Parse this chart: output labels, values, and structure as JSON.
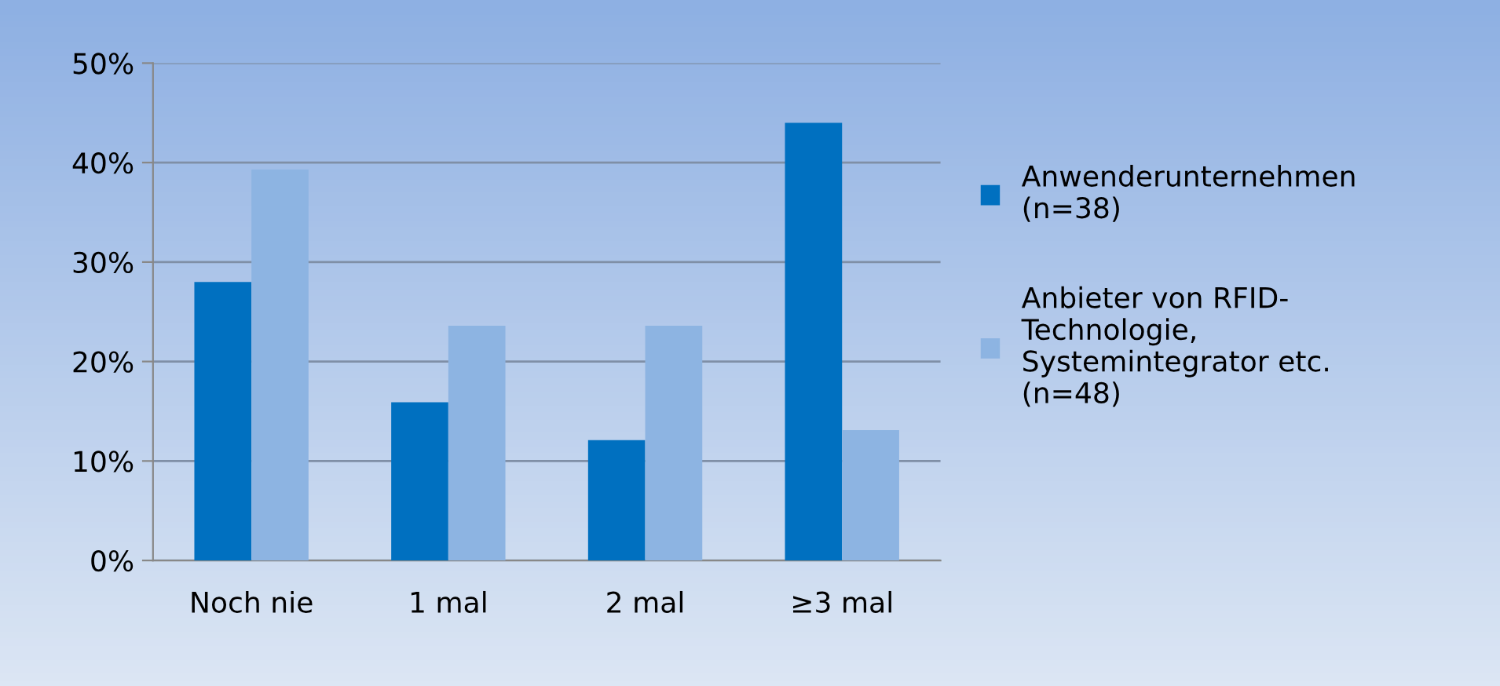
{
  "chart_data": {
    "type": "bar",
    "categories": [
      "Noch nie",
      "1 mal",
      "2 mal",
      "≥3 mal"
    ],
    "series": [
      {
        "name": "Anwenderunternehmen\n(n=38)",
        "color": "#0070c0",
        "values": [
          28.0,
          15.9,
          12.1,
          44.0
        ]
      },
      {
        "name": "Anbieter von RFID-\nTechnologie,\nSystemintegrator etc.\n(n=48)",
        "color": "#8db4e2",
        "values": [
          39.3,
          23.6,
          23.6,
          13.1
        ]
      }
    ],
    "ylim": [
      0,
      50
    ],
    "yticks": [
      {
        "value": 0,
        "label": "0%"
      },
      {
        "value": 10,
        "label": "10%"
      },
      {
        "value": 20,
        "label": "20%"
      },
      {
        "value": 30,
        "label": "30%"
      },
      {
        "value": 40,
        "label": "40%"
      },
      {
        "value": 50,
        "label": "50%"
      }
    ],
    "grid": "y",
    "legend": "right"
  }
}
